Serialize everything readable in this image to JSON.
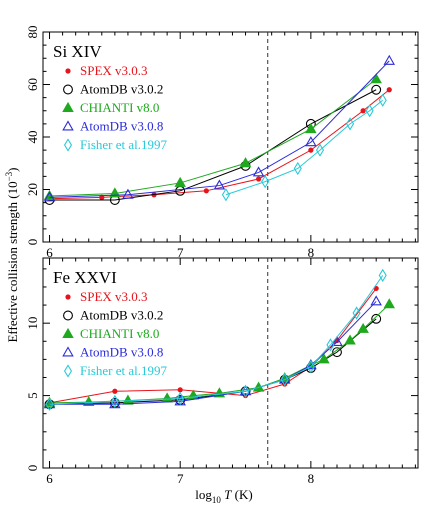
{
  "figure": {
    "ylabel_main": "Effective collision strength (10",
    "ylabel_exp": "−3",
    "ylabel_close": ")",
    "xlabel_log": "log",
    "xlabel_sub": "10",
    "xlabel_var": "T",
    "xlabel_unit": "(K)"
  },
  "chart_data": [
    {
      "type": "line",
      "title": "Si XIV",
      "xlim": [
        5.95,
        8.82
      ],
      "ylim": [
        0,
        80
      ],
      "x_ticks": [
        "6",
        "7",
        "8"
      ],
      "y_ticks": [
        "0",
        "20",
        "40",
        "60",
        "80"
      ],
      "vline_x": 7.67,
      "legend_position": "top-left",
      "series": [
        {
          "name": "SPEX v3.0.3",
          "color": "#e8141c",
          "marker": "dot",
          "x": [
            6.0,
            6.4,
            6.8,
            7.2,
            7.6,
            8.0,
            8.4,
            8.6
          ],
          "y": [
            16.5,
            17.0,
            18.0,
            19.5,
            24.0,
            35.0,
            50.0,
            58.0
          ]
        },
        {
          "name": "AtomDB v3.0.2",
          "color": "#000000",
          "marker": "circle",
          "x": [
            6.0,
            6.5,
            7.0,
            7.5,
            8.0,
            8.5
          ],
          "y": [
            16.0,
            16.0,
            19.5,
            29.0,
            45.0,
            58.0
          ]
        },
        {
          "name": "CHIANTI v8.0",
          "color": "#1fa91f",
          "marker": "triangle",
          "x": [
            6.0,
            6.5,
            7.0,
            7.5,
            8.0,
            8.5
          ],
          "y": [
            17.5,
            18.5,
            22.5,
            30.0,
            43.0,
            62.0
          ]
        },
        {
          "name": "AtomDB v3.0.8",
          "color": "#2b2bd9",
          "marker": "triangle-open",
          "x": [
            6.0,
            6.6,
            7.3,
            7.6,
            8.0,
            8.6
          ],
          "y": [
            17.0,
            18.0,
            21.5,
            26.5,
            38.0,
            69.0
          ]
        },
        {
          "name": "Fisher et al.1997",
          "color": "#27c9d9",
          "marker": "diamond-open",
          "x": [
            7.35,
            7.65,
            7.9,
            8.07,
            8.3,
            8.45,
            8.55
          ],
          "y": [
            18.0,
            23.0,
            28.0,
            35.0,
            45.0,
            50.0,
            54.0
          ]
        }
      ]
    },
    {
      "type": "line",
      "title": "Fe XXVI",
      "xlim": [
        5.95,
        8.82
      ],
      "ylim": [
        0,
        14.5
      ],
      "x_ticks": [
        "6",
        "7",
        "8"
      ],
      "y_ticks": [
        "0",
        "5",
        "10"
      ],
      "vline_x": 7.67,
      "legend_position": "top-left",
      "series": [
        {
          "name": "SPEX v3.0.3",
          "color": "#e8141c",
          "marker": "dot",
          "x": [
            6.0,
            6.5,
            7.0,
            7.5,
            7.8,
            8.0,
            8.2,
            8.5
          ],
          "y": [
            4.5,
            5.3,
            5.4,
            5.0,
            5.8,
            7.0,
            8.8,
            12.4
          ]
        },
        {
          "name": "AtomDB v3.0.2",
          "color": "#000000",
          "marker": "circle",
          "x": [
            6.0,
            6.5,
            7.0,
            7.5,
            7.8,
            8.0,
            8.2,
            8.5
          ],
          "y": [
            4.4,
            4.5,
            4.7,
            5.3,
            6.1,
            6.9,
            8.0,
            10.3
          ]
        },
        {
          "name": "CHIANTI v8.0",
          "color": "#1fa91f",
          "marker": "triangle",
          "x": [
            6.0,
            6.3,
            6.6,
            6.9,
            7.1,
            7.3,
            7.6,
            7.8,
            8.0,
            8.1,
            8.3,
            8.4,
            8.6
          ],
          "y": [
            4.5,
            4.55,
            4.65,
            4.8,
            5.0,
            5.15,
            5.55,
            6.2,
            7.1,
            7.5,
            8.8,
            9.6,
            11.3
          ]
        },
        {
          "name": "AtomDB v3.0.8",
          "color": "#2b2bd9",
          "marker": "triangle-open",
          "x": [
            6.0,
            6.5,
            7.0,
            7.5,
            7.8,
            8.0,
            8.2,
            8.5
          ],
          "y": [
            4.4,
            4.4,
            4.6,
            5.3,
            6.1,
            7.1,
            8.7,
            11.5
          ]
        },
        {
          "name": "Fisher et al.1997",
          "color": "#27c9d9",
          "marker": "diamond-open",
          "x": [
            6.0,
            6.5,
            7.0,
            7.5,
            7.8,
            8.0,
            8.15,
            8.35,
            8.55
          ],
          "y": [
            4.4,
            4.6,
            4.8,
            5.3,
            6.1,
            7.0,
            8.5,
            10.7,
            13.3
          ]
        }
      ]
    }
  ]
}
